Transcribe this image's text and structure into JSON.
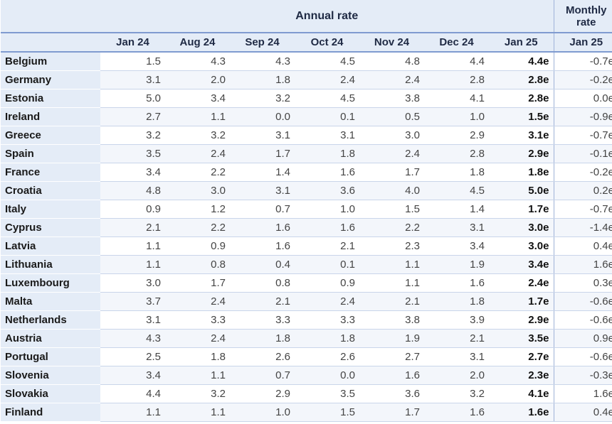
{
  "header": {
    "annual_rate": "Annual rate",
    "monthly_rate": "Monthly rate",
    "columns": [
      "Jan 24",
      "Aug 24",
      "Sep 24",
      "Oct 24",
      "Nov 24",
      "Dec 24",
      "Jan 25",
      "Jan 25"
    ]
  },
  "rows": [
    {
      "country": "Belgium",
      "values": [
        "1.5",
        "4.3",
        "4.3",
        "4.5",
        "4.8",
        "4.4",
        "4.4e",
        "-0.7e"
      ]
    },
    {
      "country": "Germany",
      "values": [
        "3.1",
        "2.0",
        "1.8",
        "2.4",
        "2.4",
        "2.8",
        "2.8e",
        "-0.2e"
      ]
    },
    {
      "country": "Estonia",
      "values": [
        "5.0",
        "3.4",
        "3.2",
        "4.5",
        "3.8",
        "4.1",
        "2.8e",
        "0.0e"
      ]
    },
    {
      "country": "Ireland",
      "values": [
        "2.7",
        "1.1",
        "0.0",
        "0.1",
        "0.5",
        "1.0",
        "1.5e",
        "-0.9e"
      ]
    },
    {
      "country": "Greece",
      "values": [
        "3.2",
        "3.2",
        "3.1",
        "3.1",
        "3.0",
        "2.9",
        "3.1e",
        "-0.7e"
      ]
    },
    {
      "country": "Spain",
      "values": [
        "3.5",
        "2.4",
        "1.7",
        "1.8",
        "2.4",
        "2.8",
        "2.9e",
        "-0.1e"
      ]
    },
    {
      "country": "France",
      "values": [
        "3.4",
        "2.2",
        "1.4",
        "1.6",
        "1.7",
        "1.8",
        "1.8e",
        "-0.2e"
      ]
    },
    {
      "country": "Croatia",
      "values": [
        "4.8",
        "3.0",
        "3.1",
        "3.6",
        "4.0",
        "4.5",
        "5.0e",
        "0.2e"
      ]
    },
    {
      "country": "Italy",
      "values": [
        "0.9",
        "1.2",
        "0.7",
        "1.0",
        "1.5",
        "1.4",
        "1.7e",
        "-0.7e"
      ]
    },
    {
      "country": "Cyprus",
      "values": [
        "2.1",
        "2.2",
        "1.6",
        "1.6",
        "2.2",
        "3.1",
        "3.0e",
        "-1.4e"
      ]
    },
    {
      "country": "Latvia",
      "values": [
        "1.1",
        "0.9",
        "1.6",
        "2.1",
        "2.3",
        "3.4",
        "3.0e",
        "0.4e"
      ]
    },
    {
      "country": "Lithuania",
      "values": [
        "1.1",
        "0.8",
        "0.4",
        "0.1",
        "1.1",
        "1.9",
        "3.4e",
        "1.6e"
      ]
    },
    {
      "country": "Luxembourg",
      "values": [
        "3.0",
        "1.7",
        "0.8",
        "0.9",
        "1.1",
        "1.6",
        "2.4e",
        "0.3e"
      ]
    },
    {
      "country": "Malta",
      "values": [
        "3.7",
        "2.4",
        "2.1",
        "2.4",
        "2.1",
        "1.8",
        "1.7e",
        "-0.6e"
      ]
    },
    {
      "country": "Netherlands",
      "values": [
        "3.1",
        "3.3",
        "3.3",
        "3.3",
        "3.8",
        "3.9",
        "2.9e",
        "-0.6e"
      ]
    },
    {
      "country": "Austria",
      "values": [
        "4.3",
        "2.4",
        "1.8",
        "1.8",
        "1.9",
        "2.1",
        "3.5e",
        "0.9e"
      ]
    },
    {
      "country": "Portugal",
      "values": [
        "2.5",
        "1.8",
        "2.6",
        "2.6",
        "2.7",
        "3.1",
        "2.7e",
        "-0.6e"
      ]
    },
    {
      "country": "Slovenia",
      "values": [
        "3.4",
        "1.1",
        "0.7",
        "0.0",
        "1.6",
        "2.0",
        "2.3e",
        "-0.3e"
      ]
    },
    {
      "country": "Slovakia",
      "values": [
        "4.4",
        "3.2",
        "2.9",
        "3.5",
        "3.6",
        "3.2",
        "4.1e",
        "1.6e"
      ]
    },
    {
      "country": "Finland",
      "values": [
        "1.1",
        "1.1",
        "1.0",
        "1.5",
        "1.7",
        "1.6",
        "1.6e",
        "0.4e"
      ]
    }
  ]
}
